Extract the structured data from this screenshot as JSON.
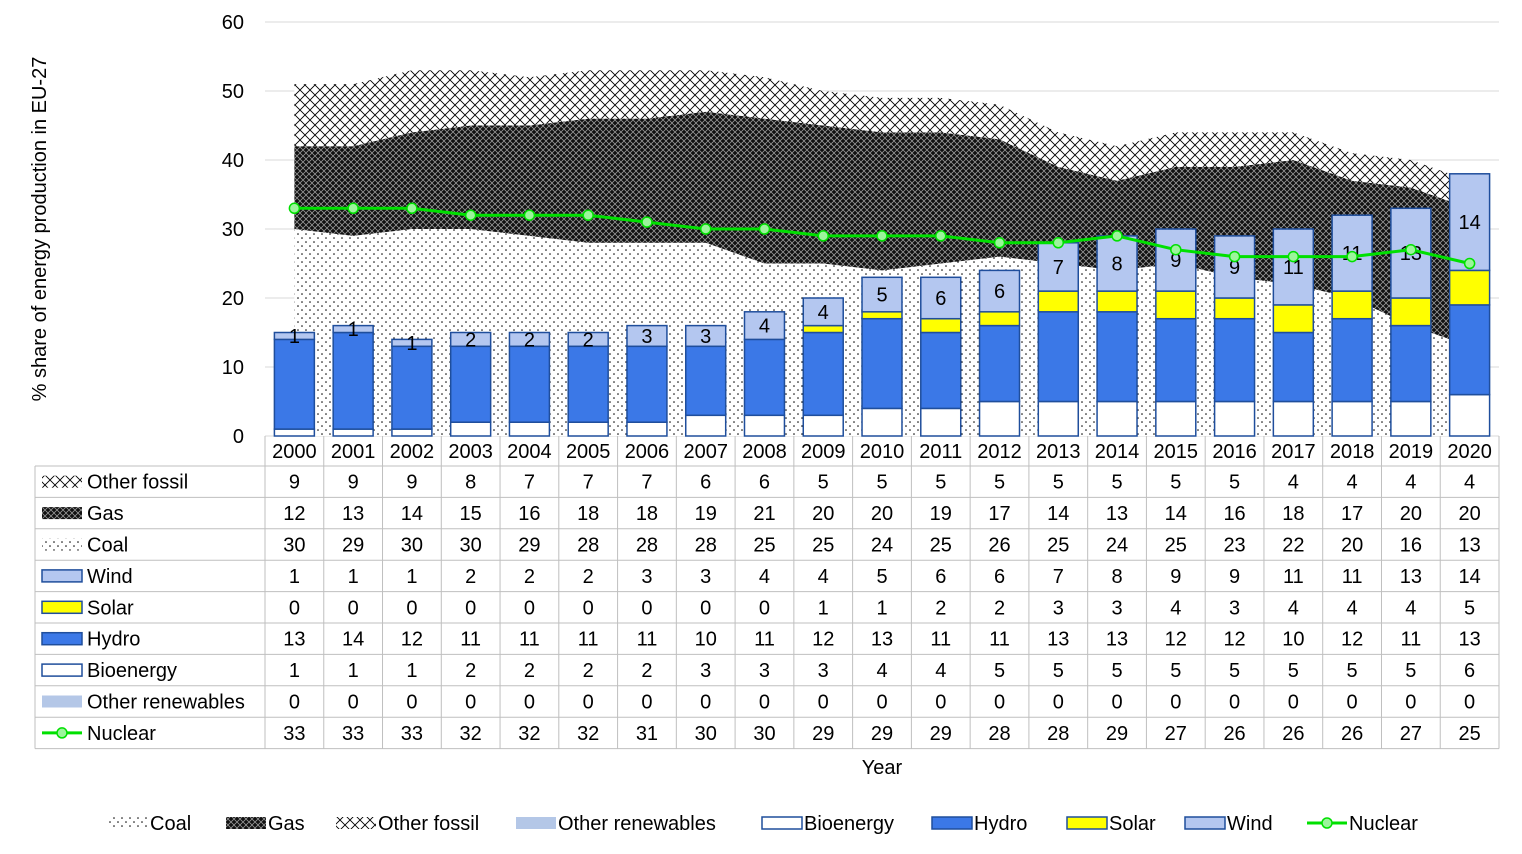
{
  "chart_data": {
    "type": "bar",
    "ylabel": "% share of energy production in EU-27",
    "xlabel": "Year",
    "ylim": [
      0,
      60
    ],
    "yticks": [
      0,
      10,
      20,
      30,
      40,
      50,
      60
    ],
    "grid": true,
    "legend_position": "bottom",
    "years": [
      "2000",
      "2001",
      "2002",
      "2003",
      "2004",
      "2005",
      "2006",
      "2007",
      "2008",
      "2009",
      "2010",
      "2011",
      "2012",
      "2013",
      "2014",
      "2015",
      "2016",
      "2017",
      "2018",
      "2019",
      "2020"
    ],
    "table_rows": [
      {
        "key": "other_fossil",
        "name": "Other fossil",
        "values": [
          9,
          9,
          9,
          8,
          7,
          7,
          7,
          6,
          6,
          5,
          5,
          5,
          5,
          5,
          5,
          5,
          5,
          4,
          4,
          4,
          4
        ]
      },
      {
        "key": "gas",
        "name": "Gas",
        "values": [
          12,
          13,
          14,
          15,
          16,
          18,
          18,
          19,
          21,
          20,
          20,
          19,
          17,
          14,
          13,
          14,
          16,
          18,
          17,
          20,
          20
        ]
      },
      {
        "key": "coal",
        "name": "Coal",
        "values": [
          30,
          29,
          30,
          30,
          29,
          28,
          28,
          28,
          25,
          25,
          24,
          25,
          26,
          25,
          24,
          25,
          23,
          22,
          20,
          16,
          13
        ]
      },
      {
        "key": "wind",
        "name": "Wind",
        "values": [
          1,
          1,
          1,
          2,
          2,
          2,
          3,
          3,
          4,
          4,
          5,
          6,
          6,
          7,
          8,
          9,
          9,
          11,
          11,
          13,
          14
        ]
      },
      {
        "key": "solar",
        "name": "Solar",
        "values": [
          0,
          0,
          0,
          0,
          0,
          0,
          0,
          0,
          0,
          1,
          1,
          2,
          2,
          3,
          3,
          4,
          3,
          4,
          4,
          4,
          5
        ]
      },
      {
        "key": "hydro",
        "name": "Hydro",
        "values": [
          13,
          14,
          12,
          11,
          11,
          11,
          11,
          10,
          11,
          12,
          13,
          11,
          11,
          13,
          13,
          12,
          12,
          10,
          12,
          11,
          13
        ]
      },
      {
        "key": "bioenergy",
        "name": "Bioenergy",
        "values": [
          1,
          1,
          1,
          2,
          2,
          2,
          2,
          3,
          3,
          3,
          4,
          4,
          5,
          5,
          5,
          5,
          5,
          5,
          5,
          5,
          6
        ]
      },
      {
        "key": "other_renewables",
        "name": "Other renewables",
        "values": [
          0,
          0,
          0,
          0,
          0,
          0,
          0,
          0,
          0,
          0,
          0,
          0,
          0,
          0,
          0,
          0,
          0,
          0,
          0,
          0,
          0
        ]
      },
      {
        "key": "nuclear",
        "name": "Nuclear",
        "values": [
          33,
          33,
          33,
          32,
          32,
          32,
          31,
          30,
          30,
          29,
          29,
          29,
          28,
          28,
          29,
          27,
          26,
          26,
          26,
          27,
          25
        ]
      }
    ],
    "legend": [
      {
        "key": "coal",
        "name": "Coal"
      },
      {
        "key": "gas",
        "name": "Gas"
      },
      {
        "key": "other_fossil",
        "name": "Other fossil"
      },
      {
        "key": "other_renewables",
        "name": "Other renewables"
      },
      {
        "key": "bioenergy",
        "name": "Bioenergy"
      },
      {
        "key": "hydro",
        "name": "Hydro"
      },
      {
        "key": "solar",
        "name": "Solar"
      },
      {
        "key": "wind",
        "name": "Wind"
      },
      {
        "key": "nuclear",
        "name": "Nuclear"
      }
    ],
    "colors": {
      "hydro": "#3b78e7",
      "solar": "#ffff00",
      "wind": "#b4c7f0",
      "bioenergy": "#ffffff",
      "other_renewables": "#b4c7e7",
      "edge": "#1f4e9c",
      "nuclear": "#00e000",
      "grid": "#d9d9d9"
    }
  }
}
